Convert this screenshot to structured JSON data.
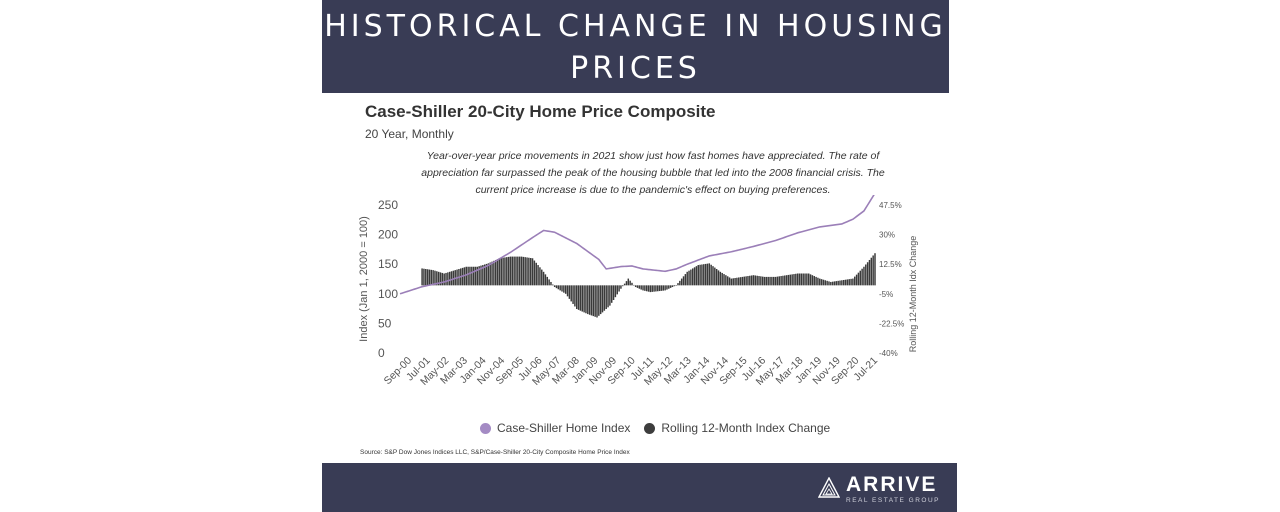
{
  "banner": {
    "title": "HISTORICAL CHANGE IN HOUSING PRICES"
  },
  "chart_header": {
    "title": "Case-Shiller 20-City Home Price Composite",
    "subtitle": "20 Year, Monthly",
    "description": "Year-over-year price movements in 2021 show just how fast homes have appreciated. The rate of appreciation far surpassed the peak of the housing bubble that led into the 2008 financial crisis. The current price increase is due to the pandemic's effect on buying preferences."
  },
  "legend": {
    "home_index": "Case-Shiller Home Index",
    "rolling": "Rolling 12-Month Index Change"
  },
  "source": "Source:  S&P Dow Jones Indices LLC, S&P/Case-Shiller 20-City Composite Home Price Index",
  "footer": {
    "brand": "ARRIVE",
    "brand_sub": "REAL ESTATE GROUP"
  },
  "colors": {
    "banner": "#393c55",
    "line": "#9b7fb8",
    "bars": "#3a3a3a",
    "legend_line": "#a48bc4",
    "legend_bars": "#3d3d3d"
  },
  "icons": {
    "brand_logo": "triangle-logo-icon"
  },
  "chart_data": {
    "type": "bar+line",
    "ylabel": "Index (Jan 1, 2000 = 100)",
    "y2label": "Rolling 12-Month Idx Change",
    "ylim": [
      0,
      250
    ],
    "y2lim": [
      -40,
      47.5
    ],
    "yticks": [
      0,
      50,
      100,
      150,
      200,
      250
    ],
    "y2ticks": [
      -40,
      -22.5,
      -5,
      12.5,
      30,
      47.5
    ],
    "y2ticklabels": [
      "-40%",
      "-22.5%",
      "-5%",
      "12.5%",
      "30%",
      "47.5%"
    ],
    "x_tick_labels": [
      "Sep-00",
      "Jul-01",
      "May-02",
      "Mar-03",
      "Jan-04",
      "Nov-04",
      "Sep-05",
      "Jul-06",
      "May-07",
      "Mar-08",
      "Jan-09",
      "Nov-09",
      "Sep-10",
      "Jul-11",
      "May-12",
      "Mar-13",
      "Jan-14",
      "Nov-14",
      "Sep-15",
      "Jul-16",
      "May-17",
      "Mar-18",
      "Jan-19",
      "Nov-19",
      "Sep-20",
      "Jul-21"
    ],
    "series": [
      {
        "name": "Case-Shiller Home Index",
        "kind": "line",
        "anchors": [
          [
            "Jan-00",
            100
          ],
          [
            "Jan-01",
            112
          ],
          [
            "Jan-02",
            120
          ],
          [
            "Jan-03",
            132
          ],
          [
            "Jan-04",
            148
          ],
          [
            "Jan-05",
            170
          ],
          [
            "Jan-06",
            195
          ],
          [
            "Jul-06",
            207
          ],
          [
            "Jan-07",
            204
          ],
          [
            "Jan-08",
            185
          ],
          [
            "Jan-09",
            158
          ],
          [
            "May-09",
            142
          ],
          [
            "Jan-10",
            146
          ],
          [
            "Jul-10",
            147
          ],
          [
            "Jan-11",
            142
          ],
          [
            "Jan-12",
            138
          ],
          [
            "Jul-12",
            142
          ],
          [
            "Jan-13",
            150
          ],
          [
            "Jan-14",
            164
          ],
          [
            "Jan-15",
            171
          ],
          [
            "Jan-16",
            180
          ],
          [
            "Jan-17",
            190
          ],
          [
            "Jan-18",
            203
          ],
          [
            "Jan-19",
            213
          ],
          [
            "Jan-20",
            218
          ],
          [
            "Jul-20",
            226
          ],
          [
            "Jan-21",
            240
          ],
          [
            "Jul-21",
            270
          ]
        ]
      },
      {
        "name": "Rolling 12-Month Index Change",
        "kind": "bar",
        "unit": "%",
        "anchors": [
          [
            "Jan-01",
            10
          ],
          [
            "Jul-01",
            9
          ],
          [
            "Jan-02",
            7
          ],
          [
            "Jul-02",
            9
          ],
          [
            "Jan-03",
            11
          ],
          [
            "Jul-03",
            11
          ],
          [
            "Jan-04",
            13
          ],
          [
            "Jul-04",
            16
          ],
          [
            "Jan-05",
            17
          ],
          [
            "Jul-05",
            17
          ],
          [
            "Jan-06",
            16
          ],
          [
            "Jul-06",
            8
          ],
          [
            "Jan-07",
            -1
          ],
          [
            "Jul-07",
            -5
          ],
          [
            "Jan-08",
            -14
          ],
          [
            "Jul-08",
            -17
          ],
          [
            "Dec-08",
            -19
          ],
          [
            "Jul-09",
            -12
          ],
          [
            "Jan-10",
            -2
          ],
          [
            "May-10",
            4
          ],
          [
            "Sep-10",
            -1
          ],
          [
            "Jan-11",
            -3
          ],
          [
            "May-11",
            -4
          ],
          [
            "Jan-12",
            -3
          ],
          [
            "Jul-12",
            0
          ],
          [
            "Jan-13",
            8
          ],
          [
            "Jul-13",
            12
          ],
          [
            "Jan-14",
            13
          ],
          [
            "Jul-14",
            8
          ],
          [
            "Jan-15",
            4
          ],
          [
            "Jul-15",
            5
          ],
          [
            "Jan-16",
            6
          ],
          [
            "Jul-16",
            5
          ],
          [
            "Jan-17",
            5
          ],
          [
            "Jul-17",
            6
          ],
          [
            "Jan-18",
            7
          ],
          [
            "Jul-18",
            7
          ],
          [
            "Jan-19",
            4
          ],
          [
            "Jul-19",
            2
          ],
          [
            "Jan-20",
            3
          ],
          [
            "Jul-20",
            4
          ],
          [
            "Jan-21",
            11
          ],
          [
            "Jul-21",
            19
          ]
        ]
      }
    ]
  }
}
